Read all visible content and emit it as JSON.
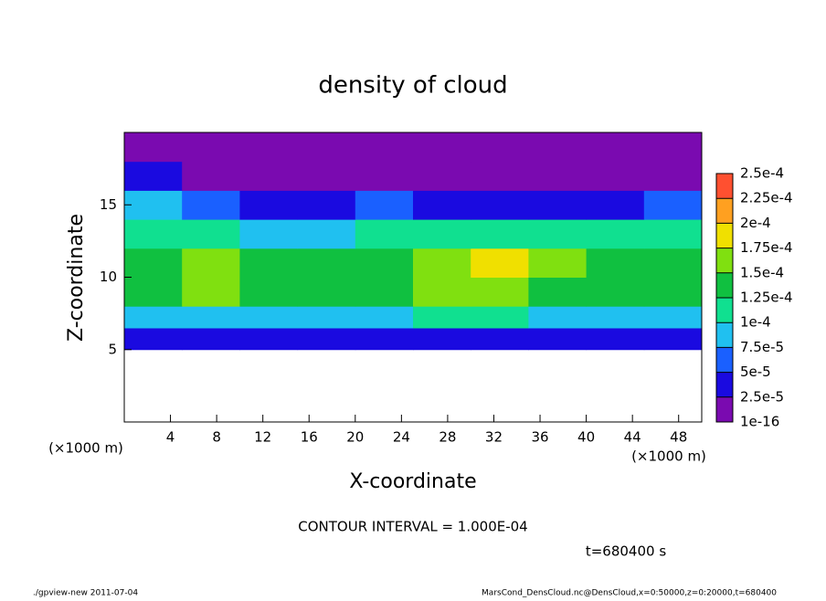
{
  "chart_data": {
    "type": "contour",
    "title": "density of cloud",
    "x_label": "X-coordinate",
    "y_label": "Z-coordinate",
    "x_unit_left": "(×1000 m)",
    "x_unit_right": "(×1000 m)",
    "annotation": "CONTOUR INTERVAL = 1.000E-04",
    "time_label": "t=680400 s",
    "footer_left": "./gpview-new  2011-07-04",
    "footer_right": "MarsCond_DensCloud.nc@DensCloud,x=0:50000,z=0:20000,t=680400",
    "xlim": [
      0,
      50
    ],
    "ylim": [
      0,
      20
    ],
    "xticks": [
      4,
      8,
      12,
      16,
      20,
      24,
      28,
      32,
      36,
      40,
      44,
      48
    ],
    "yticks": [
      5,
      10,
      15
    ],
    "xbins": [
      0,
      5,
      10,
      15,
      20,
      25,
      30,
      35,
      40,
      45,
      50
    ],
    "zbins": [
      5,
      6.5,
      8,
      10,
      12,
      14,
      16,
      18,
      20
    ],
    "values": [
      [
        4e-05,
        4e-05,
        4e-05,
        4e-05,
        4e-05,
        4e-05,
        4e-05,
        4e-05,
        4e-05,
        4e-05
      ],
      [
        9e-05,
        9e-05,
        9e-05,
        9e-05,
        9e-05,
        0.0001,
        0.0001,
        9e-05,
        9e-05,
        9e-05
      ],
      [
        0.00013,
        0.00016,
        0.00014,
        0.00013,
        0.00013,
        0.00016,
        0.00017,
        0.00014,
        0.00013,
        0.00013
      ],
      [
        0.00013,
        0.00015,
        0.00013,
        0.00013,
        0.00013,
        0.00017,
        0.00018,
        0.00015,
        0.00014,
        0.00013
      ],
      [
        0.00011,
        0.0001,
        8e-05,
        9e-05,
        0.0001,
        0.00011,
        0.00011,
        0.00011,
        0.00011,
        0.00011
      ],
      [
        8e-05,
        5e-05,
        3e-05,
        4e-05,
        6e-05,
        4e-05,
        3e-05,
        3e-05,
        4e-05,
        6e-05
      ],
      [
        3e-05,
        2e-05,
        1e-05,
        1e-05,
        2e-05,
        1e-05,
        1e-05,
        1e-05,
        1e-05,
        2e-05
      ],
      [
        1e-05,
        1e-05,
        1e-05,
        1e-05,
        1e-05,
        1e-05,
        1e-05,
        1e-05,
        1e-05,
        1e-05
      ]
    ],
    "levels": [
      {
        "value": 1e-16,
        "label": "1e-16"
      },
      {
        "value": 2.5e-05,
        "label": "2.5e-5"
      },
      {
        "value": 5e-05,
        "label": "5e-5"
      },
      {
        "value": 7.5e-05,
        "label": "7.5e-5"
      },
      {
        "value": 0.0001,
        "label": "1e-4"
      },
      {
        "value": 0.000125,
        "label": "1.25e-4"
      },
      {
        "value": 0.00015,
        "label": "1.5e-4"
      },
      {
        "value": 0.000175,
        "label": "1.75e-4"
      },
      {
        "value": 0.0002,
        "label": "2e-4"
      },
      {
        "value": 0.000225,
        "label": "2.25e-4"
      },
      {
        "value": 0.00025,
        "label": "2.5e-4"
      }
    ],
    "colors": [
      "#7a0ab0",
      "#1a0ae0",
      "#1a60ff",
      "#20c0f0",
      "#10e090",
      "#10c040",
      "#80e010",
      "#f0e000",
      "#ffa020",
      "#ff5030"
    ]
  }
}
